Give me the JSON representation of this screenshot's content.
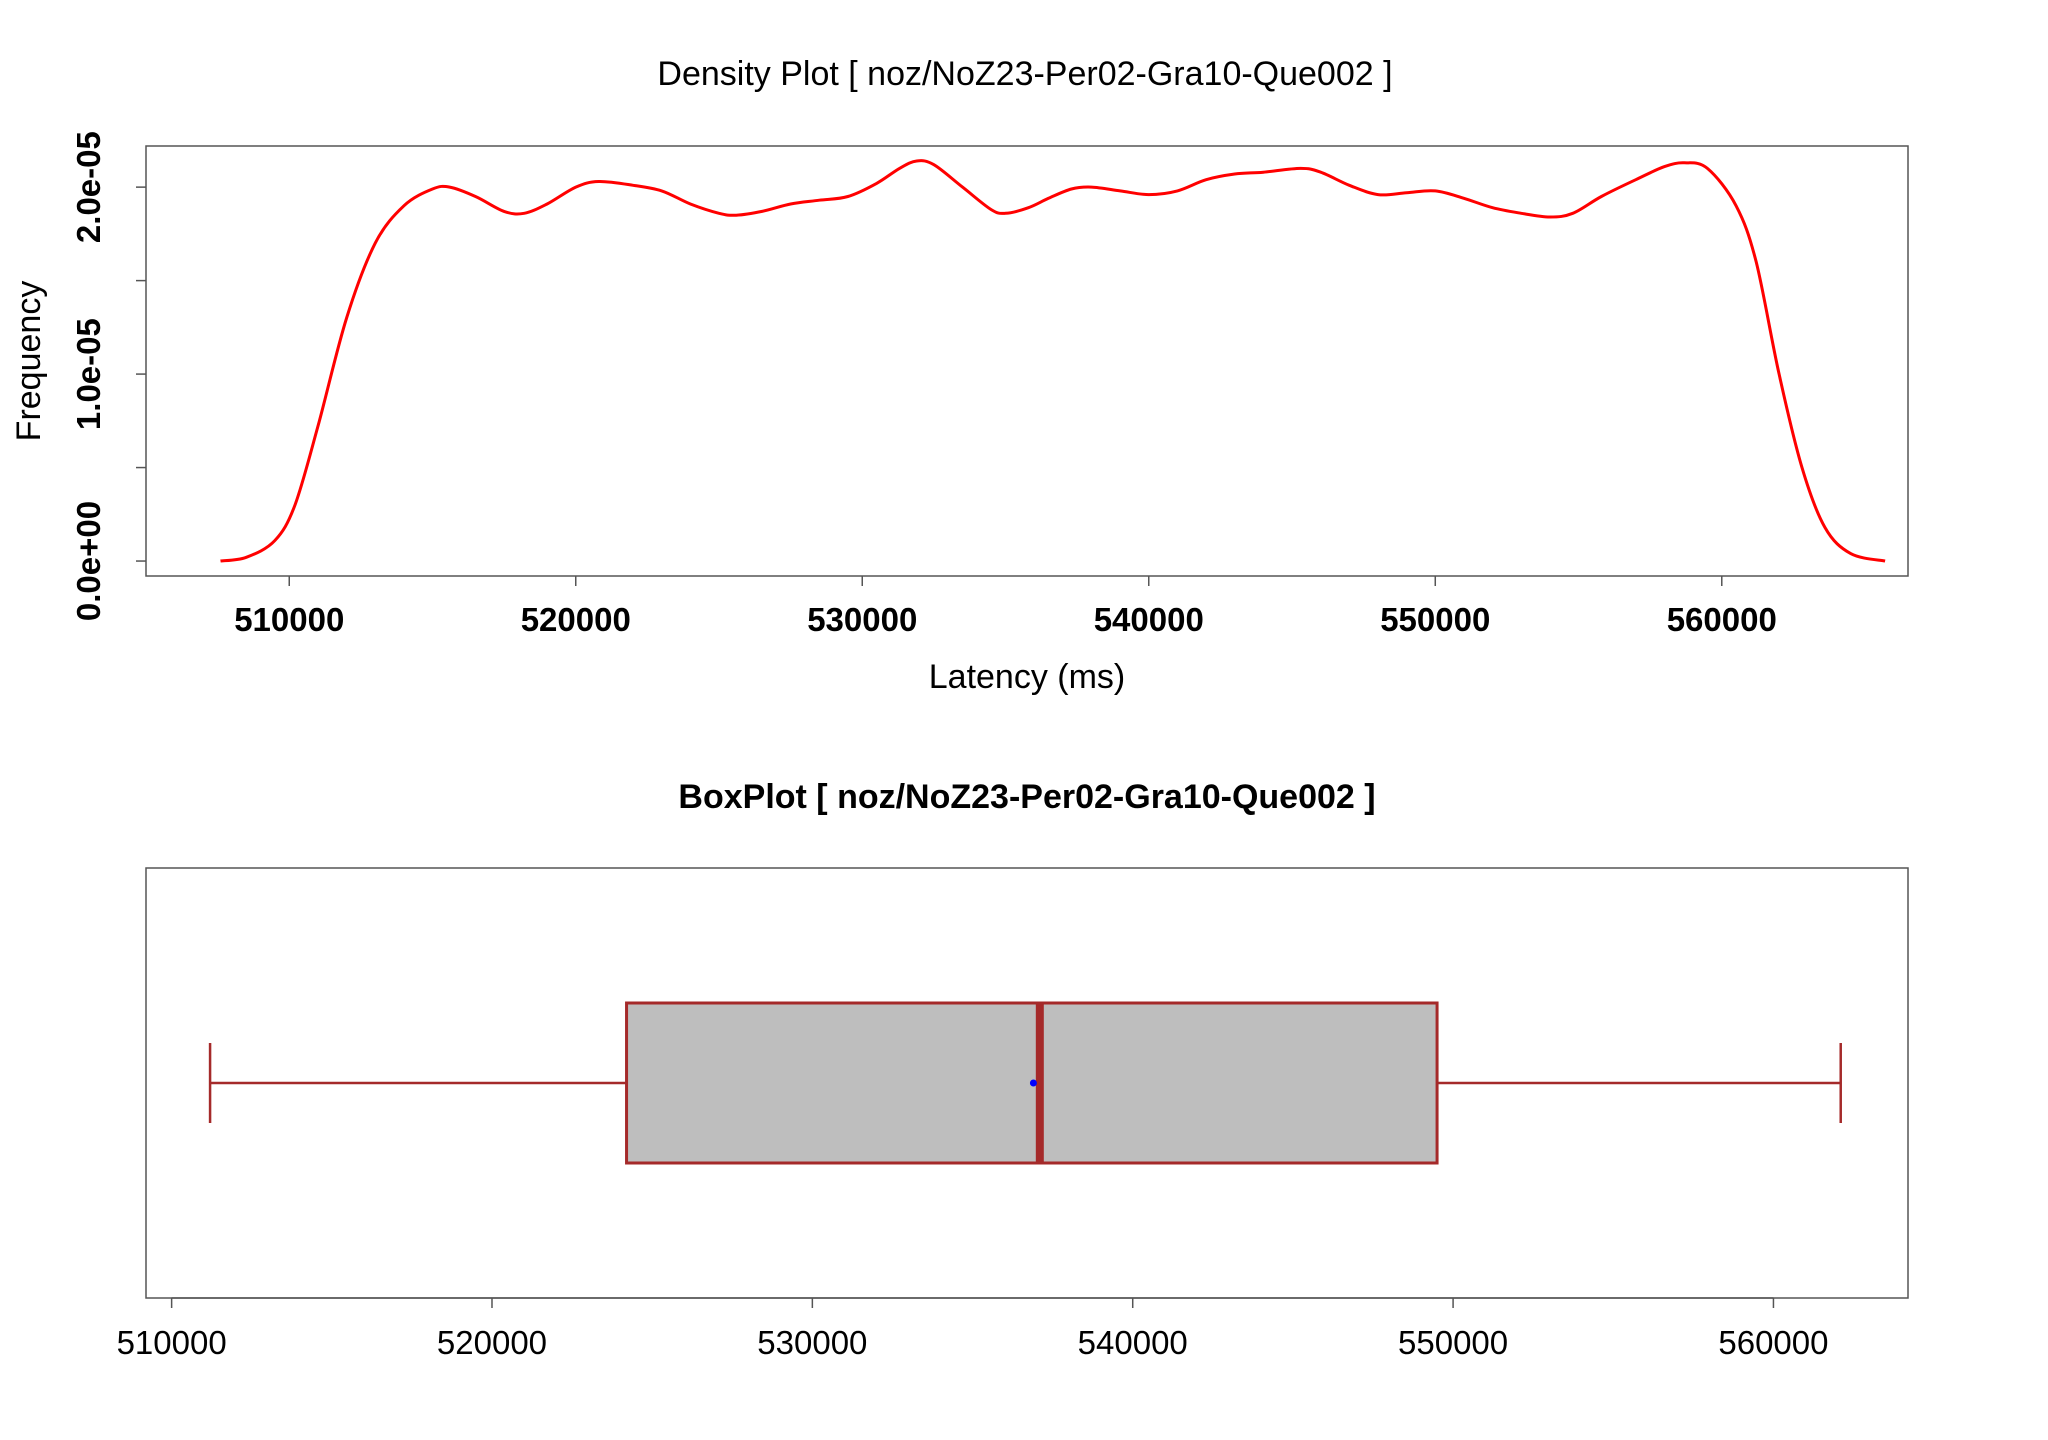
{
  "chart_data": [
    {
      "type": "line",
      "title": "Density Plot [ noz/NoZ23-Per02-Gra10-Que002 ]",
      "xlabel": "Latency (ms)",
      "ylabel": "Frequency",
      "xlim": [
        505000,
        566500
      ],
      "ylim": [
        -8e-07,
        2.22e-05
      ],
      "x_ticks": [
        510000,
        520000,
        530000,
        540000,
        550000,
        560000
      ],
      "x_tick_labels": [
        "510000",
        "520000",
        "530000",
        "540000",
        "550000",
        "560000"
      ],
      "y_ticks": [
        0,
        5e-06,
        1e-05,
        1.5e-05,
        2e-05
      ],
      "y_tick_labels": [
        "0.0e+00",
        "",
        "1.0e-05",
        "",
        "2.0e-05"
      ],
      "series": [
        {
          "color": "#ff0000",
          "x": [
            507600,
            508500,
            509500,
            510200,
            511000,
            512000,
            513000,
            514000,
            515000,
            515600,
            516500,
            517500,
            518200,
            519000,
            520000,
            520800,
            522000,
            523000,
            524000,
            525000,
            525600,
            526500,
            527500,
            528500,
            529500,
            530500,
            531300,
            531900,
            532500,
            533500,
            534500,
            535000,
            535800,
            536500,
            537300,
            538000,
            539000,
            540000,
            541000,
            542000,
            543000,
            544000,
            545300,
            546000,
            547000,
            548000,
            549000,
            550000,
            551000,
            552000,
            553000,
            554000,
            554800,
            555800,
            557000,
            558000,
            558700,
            559500,
            560500,
            561200,
            562000,
            562800,
            563600,
            564500,
            565700
          ],
          "y": [
            0.0,
            2e-07,
            1.1e-06,
            3e-06,
            7.2e-06,
            1.3e-05,
            1.7e-05,
            1.9e-05,
            1.99e-05,
            2e-05,
            1.95e-05,
            1.87e-05,
            1.86e-05,
            1.91e-05,
            2e-05,
            2.03e-05,
            2.01e-05,
            1.98e-05,
            1.91e-05,
            1.86e-05,
            1.85e-05,
            1.87e-05,
            1.91e-05,
            1.93e-05,
            1.95e-05,
            2.02e-05,
            2.1e-05,
            2.14e-05,
            2.12e-05,
            2e-05,
            1.88e-05,
            1.86e-05,
            1.89e-05,
            1.94e-05,
            1.99e-05,
            2e-05,
            1.98e-05,
            1.96e-05,
            1.98e-05,
            2.04e-05,
            2.07e-05,
            2.08e-05,
            2.1e-05,
            2.08e-05,
            2.01e-05,
            1.96e-05,
            1.97e-05,
            1.98e-05,
            1.94e-05,
            1.89e-05,
            1.86e-05,
            1.84e-05,
            1.86e-05,
            1.95e-05,
            2.04e-05,
            2.11e-05,
            2.13e-05,
            2.1e-05,
            1.9e-05,
            1.6e-05,
            1e-05,
            5e-06,
            1.8e-06,
            4e-07,
            0.0
          ]
        }
      ]
    },
    {
      "type": "boxplot",
      "title": "BoxPlot [ noz/NoZ23-Per02-Gra10-Que002 ]",
      "xlim": [
        509200,
        564200
      ],
      "x_ticks": [
        510000,
        520000,
        530000,
        540000,
        550000,
        560000
      ],
      "x_tick_labels": [
        "510000",
        "520000",
        "530000",
        "540000",
        "550000",
        "560000"
      ],
      "min": 511200,
      "q1": 524200,
      "median": 537100,
      "q3": 549500,
      "max": 562100,
      "mean": 536900,
      "box_fill": "#bebebe",
      "box_stroke": "#a52a2a",
      "mean_color": "#0000ff"
    }
  ]
}
